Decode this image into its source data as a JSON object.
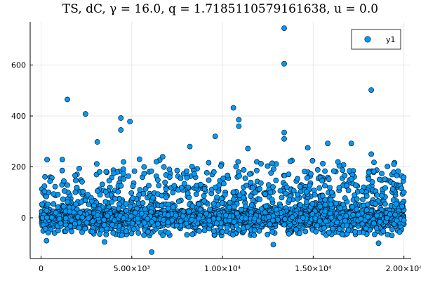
{
  "chart_data": {
    "type": "scatter",
    "title": "TS, dC, γ = 16.0, q = 1.7185110579161638, u = 0.0",
    "xlabel": "",
    "ylabel": "",
    "xlim": [
      -600,
      20400
    ],
    "ylim": [
      -160,
      770
    ],
    "xticks": [
      {
        "value": 0,
        "label": "0"
      },
      {
        "value": 5000,
        "label": "5.00×10³"
      },
      {
        "value": 10000,
        "label": "1.00×10⁴"
      },
      {
        "value": 15000,
        "label": "1.50×10⁴"
      },
      {
        "value": 20000,
        "label": "2.00×10⁴"
      }
    ],
    "yticks": [
      {
        "value": 0,
        "label": "0"
      },
      {
        "value": 200,
        "label": "200"
      },
      {
        "value": 400,
        "label": "400"
      },
      {
        "value": 600,
        "label": "600"
      }
    ],
    "grid": true,
    "legend": {
      "position": "top-right",
      "entries": [
        "y1"
      ]
    },
    "series": [
      {
        "name": "y1",
        "color": "#009af9",
        "n_points": 20000,
        "notable_points": [
          {
            "x": 1450,
            "y": 465
          },
          {
            "x": 2450,
            "y": 408
          },
          {
            "x": 3100,
            "y": 298
          },
          {
            "x": 4400,
            "y": 392
          },
          {
            "x": 4400,
            "y": 345
          },
          {
            "x": 4900,
            "y": 378
          },
          {
            "x": 6700,
            "y": 240
          },
          {
            "x": 8200,
            "y": 280
          },
          {
            "x": 9600,
            "y": 320
          },
          {
            "x": 10600,
            "y": 432
          },
          {
            "x": 10900,
            "y": 385
          },
          {
            "x": 10900,
            "y": 360
          },
          {
            "x": 11400,
            "y": 272
          },
          {
            "x": 13400,
            "y": 745
          },
          {
            "x": 13400,
            "y": 605
          },
          {
            "x": 13400,
            "y": 335
          },
          {
            "x": 13400,
            "y": 310
          },
          {
            "x": 14700,
            "y": 275
          },
          {
            "x": 15800,
            "y": 292
          },
          {
            "x": 17100,
            "y": 292
          },
          {
            "x": 18200,
            "y": 502
          },
          {
            "x": 18200,
            "y": 250
          },
          {
            "x": 6100,
            "y": -135
          },
          {
            "x": 12800,
            "y": -105
          },
          {
            "x": 18600,
            "y": -100
          },
          {
            "x": 300,
            "y": -90
          },
          {
            "x": 3500,
            "y": -95
          },
          {
            "x": 19900,
            "y": 45
          },
          {
            "x": 20000,
            "y": -10
          }
        ]
      }
    ]
  }
}
